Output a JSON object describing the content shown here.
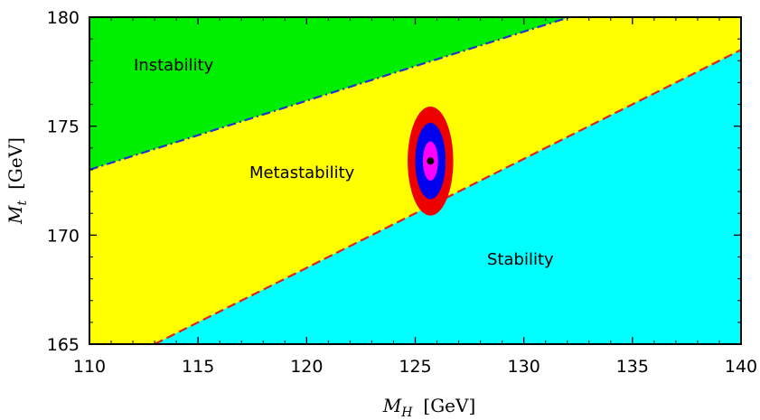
{
  "chart_data": {
    "type": "area",
    "xlabel": {
      "symbol": "M",
      "subscript": "H",
      "unit": "[GeV]"
    },
    "ylabel": {
      "symbol": "M",
      "subscript": "t",
      "unit": "[GeV]"
    },
    "xlim": [
      110,
      140
    ],
    "ylim": [
      165,
      180
    ],
    "x_ticks": [
      110,
      115,
      120,
      125,
      130,
      135,
      140
    ],
    "y_ticks": [
      165,
      170,
      175,
      180
    ],
    "grid": false,
    "regions": [
      {
        "label": "Instability",
        "color": "#00ee00"
      },
      {
        "label": "Metastability",
        "color": "#ffff00"
      },
      {
        "label": "Stability",
        "color": "#00ffff"
      }
    ],
    "boundaries": [
      {
        "name": "instability-boundary",
        "style": "dash-dot",
        "color": "#2233cc",
        "points": [
          [
            110,
            173.0
          ],
          [
            132.1,
            180.0
          ]
        ]
      },
      {
        "name": "stability-boundary",
        "style": "dashed",
        "color": "#dd2222",
        "points": [
          [
            113.0,
            165.0
          ],
          [
            140,
            178.5
          ]
        ]
      }
    ],
    "measurement": {
      "x": 125.7,
      "y": 173.4,
      "ellipses": [
        {
          "sigma": 3,
          "color": "#ee0000",
          "rx": 1.05,
          "ry": 2.5
        },
        {
          "sigma": 2,
          "color": "#0000ee",
          "rx": 0.7,
          "ry": 1.75
        },
        {
          "sigma": 1,
          "color": "#ff00ff",
          "rx": 0.35,
          "ry": 0.9
        }
      ],
      "point_color": "#000000"
    }
  }
}
